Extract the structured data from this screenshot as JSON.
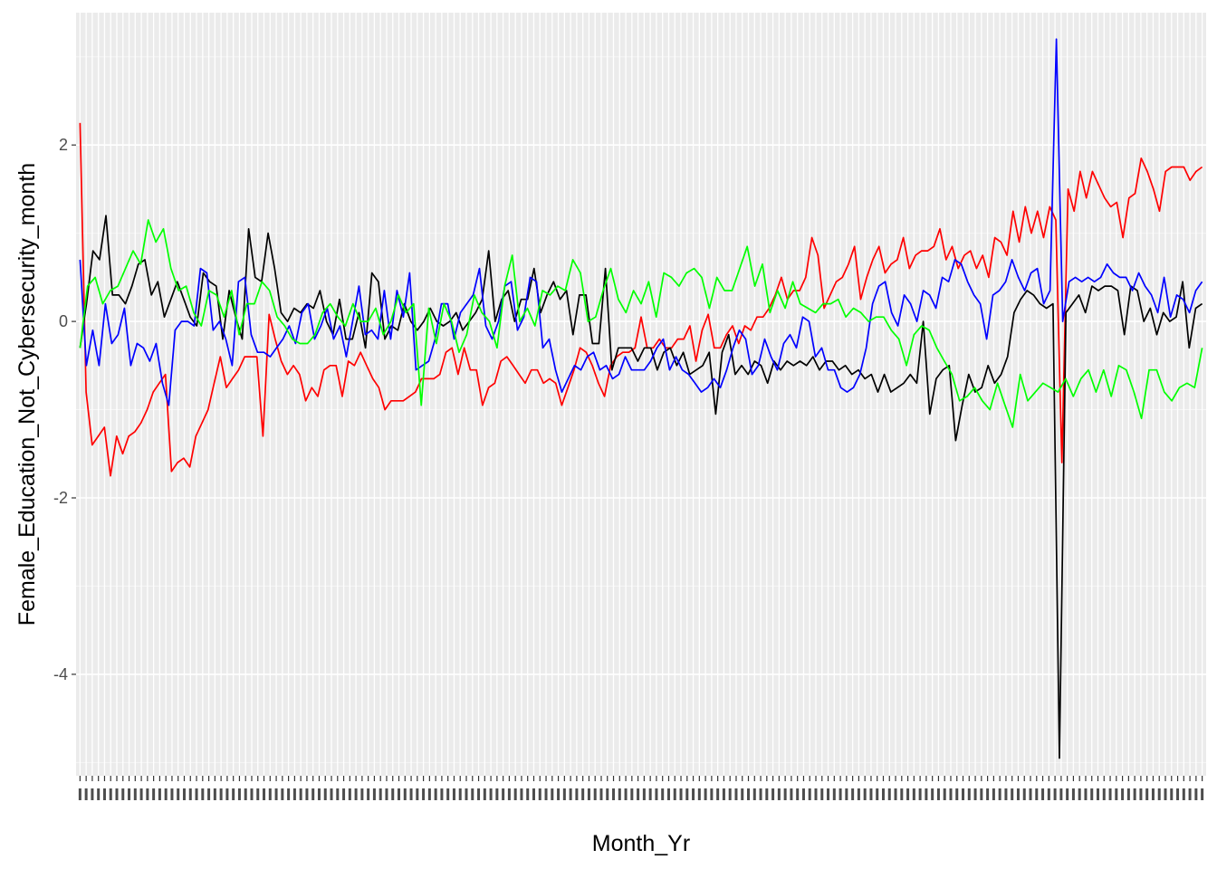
{
  "chart_data": {
    "type": "line",
    "title": "",
    "xlabel": "Month_Yr",
    "ylabel": "Female_Education_Not_Cybersecurity_month",
    "x": {
      "start": 0,
      "end": 183
    },
    "x_tick_count": 184,
    "x_tick_labels_note": "184 overlapping date tick labels, unreadable",
    "xlim": [
      0,
      183
    ],
    "ylim": [
      -5.15,
      3.5
    ],
    "y_ticks": [
      2,
      0,
      -2,
      -4
    ],
    "grid": true,
    "legend": "none",
    "panel_background": "#ebebeb",
    "series": [
      {
        "color": "#ff0000",
        "values": [
          2.25,
          -0.8,
          -1.4,
          -1.3,
          -1.2,
          -1.75,
          -1.3,
          -1.5,
          -1.3,
          -1.25,
          -1.15,
          -1.0,
          -0.8,
          -0.7,
          -0.6,
          -1.7,
          -1.6,
          -1.55,
          -1.65,
          -1.3,
          -1.15,
          -1.0,
          -0.7,
          -0.4,
          -0.75,
          -0.65,
          -0.55,
          -0.4,
          -0.4,
          -0.4,
          -1.3,
          0.08,
          -0.2,
          -0.45,
          -0.6,
          -0.5,
          -0.6,
          -0.9,
          -0.75,
          -0.85,
          -0.55,
          -0.5,
          -0.5,
          -0.85,
          -0.45,
          -0.5,
          -0.35,
          -0.5,
          -0.65,
          -0.75,
          -1.0,
          -0.9,
          -0.9,
          -0.9,
          -0.85,
          -0.8,
          -0.65,
          -0.65,
          -0.65,
          -0.6,
          -0.35,
          -0.3,
          -0.6,
          -0.3,
          -0.55,
          -0.55,
          -0.95,
          -0.75,
          -0.7,
          -0.45,
          -0.4,
          -0.5,
          -0.6,
          -0.7,
          -0.55,
          -0.55,
          -0.7,
          -0.65,
          -0.7,
          -0.95,
          -0.75,
          -0.55,
          -0.3,
          -0.35,
          -0.5,
          -0.7,
          -0.85,
          -0.5,
          -0.4,
          -0.35,
          -0.35,
          -0.3,
          0.05,
          -0.3,
          -0.3,
          -0.2,
          -0.3,
          -0.3,
          -0.2,
          -0.2,
          -0.05,
          -0.45,
          -0.1,
          0.08,
          -0.3,
          -0.3,
          -0.15,
          -0.05,
          -0.25,
          -0.05,
          -0.1,
          0.05,
          0.05,
          0.15,
          0.3,
          0.5,
          0.25,
          0.35,
          0.35,
          0.5,
          0.95,
          0.75,
          0.15,
          0.3,
          0.45,
          0.5,
          0.65,
          0.85,
          0.25,
          0.5,
          0.7,
          0.85,
          0.55,
          0.65,
          0.7,
          0.95,
          0.6,
          0.75,
          0.8,
          0.8,
          0.85,
          1.05,
          0.7,
          0.85,
          0.6,
          0.75,
          0.8,
          0.6,
          0.75,
          0.5,
          0.95,
          0.9,
          0.75,
          1.25,
          0.9,
          1.3,
          1.0,
          1.25,
          0.95,
          1.3,
          1.15,
          -1.6,
          1.5,
          1.25,
          1.7,
          1.4,
          1.7,
          1.55,
          1.4,
          1.3,
          1.35,
          0.95,
          1.4,
          1.45,
          1.85,
          1.7,
          1.5,
          1.25,
          1.7,
          1.75,
          1.75,
          1.75,
          1.6,
          1.7,
          1.75
        ]
      },
      {
        "color": "#000000",
        "values": [
          -0.3,
          0.2,
          0.8,
          0.7,
          1.2,
          0.3,
          0.3,
          0.2,
          0.4,
          0.65,
          0.7,
          0.3,
          0.45,
          0.05,
          0.25,
          0.45,
          0.25,
          0.05,
          -0.05,
          0.55,
          0.45,
          0.4,
          -0.2,
          0.35,
          0.05,
          -0.2,
          1.05,
          0.5,
          0.45,
          1.0,
          0.6,
          0.1,
          0.0,
          0.15,
          0.1,
          0.2,
          0.15,
          0.35,
          0.0,
          -0.15,
          0.25,
          -0.2,
          -0.2,
          0.1,
          -0.3,
          0.55,
          0.45,
          -0.2,
          -0.05,
          -0.1,
          0.2,
          0.0,
          -0.1,
          0.0,
          0.15,
          0.0,
          -0.05,
          0.0,
          0.1,
          -0.1,
          0.0,
          0.1,
          0.25,
          0.8,
          0.0,
          0.25,
          0.35,
          0.0,
          0.25,
          0.25,
          0.6,
          0.1,
          0.3,
          0.45,
          0.25,
          0.35,
          -0.15,
          0.3,
          0.3,
          -0.25,
          -0.25,
          0.6,
          -0.55,
          -0.3,
          -0.3,
          -0.3,
          -0.45,
          -0.3,
          -0.3,
          -0.55,
          -0.35,
          -0.3,
          -0.5,
          -0.35,
          -0.6,
          -0.55,
          -0.5,
          -0.35,
          -1.05,
          -0.35,
          -0.15,
          -0.6,
          -0.5,
          -0.6,
          -0.45,
          -0.5,
          -0.7,
          -0.45,
          -0.55,
          -0.45,
          -0.5,
          -0.45,
          -0.5,
          -0.4,
          -0.55,
          -0.45,
          -0.45,
          -0.55,
          -0.5,
          -0.6,
          -0.55,
          -0.65,
          -0.6,
          -0.8,
          -0.6,
          -0.8,
          -0.75,
          -0.7,
          -0.6,
          -0.7,
          0.0,
          -1.05,
          -0.65,
          -0.55,
          -0.5,
          -1.35,
          -0.95,
          -0.6,
          -0.8,
          -0.75,
          -0.5,
          -0.7,
          -0.6,
          -0.4,
          0.1,
          0.25,
          0.35,
          0.3,
          0.2,
          0.15,
          0.2,
          -4.95,
          0.1,
          0.2,
          0.3,
          0.1,
          0.4,
          0.35,
          0.4,
          0.4,
          0.35,
          -0.15,
          0.4,
          0.35,
          0.0,
          0.15,
          -0.15,
          0.1,
          0.0,
          0.05,
          0.45,
          -0.3,
          0.15,
          0.2
        ]
      },
      {
        "color": "#0000ff",
        "values": [
          0.7,
          -0.5,
          -0.1,
          -0.5,
          0.2,
          -0.25,
          -0.15,
          0.15,
          -0.5,
          -0.25,
          -0.3,
          -0.45,
          -0.25,
          -0.7,
          -0.95,
          -0.1,
          0.0,
          0.0,
          -0.05,
          0.6,
          0.55,
          -0.1,
          0.0,
          -0.2,
          -0.5,
          0.45,
          0.5,
          -0.15,
          -0.35,
          -0.35,
          -0.4,
          -0.3,
          -0.2,
          -0.05,
          -0.25,
          0.1,
          0.2,
          -0.2,
          -0.05,
          0.15,
          -0.2,
          -0.05,
          -0.4,
          0.0,
          0.4,
          -0.15,
          -0.1,
          -0.2,
          0.35,
          -0.2,
          0.35,
          0.05,
          0.55,
          -0.55,
          -0.5,
          -0.45,
          -0.2,
          0.2,
          0.2,
          -0.2,
          0.1,
          0.2,
          0.3,
          0.6,
          -0.05,
          -0.2,
          0.0,
          0.4,
          0.45,
          -0.1,
          0.05,
          0.5,
          0.45,
          -0.3,
          -0.2,
          -0.55,
          -0.8,
          -0.65,
          -0.5,
          -0.55,
          -0.4,
          -0.35,
          -0.55,
          -0.5,
          -0.65,
          -0.6,
          -0.4,
          -0.55,
          -0.55,
          -0.55,
          -0.45,
          -0.3,
          -0.2,
          -0.55,
          -0.4,
          -0.55,
          -0.6,
          -0.7,
          -0.8,
          -0.75,
          -0.65,
          -0.75,
          -0.55,
          -0.3,
          -0.1,
          -0.2,
          -0.6,
          -0.5,
          -0.2,
          -0.4,
          -0.55,
          -0.25,
          -0.15,
          -0.3,
          0.05,
          0.0,
          -0.4,
          -0.3,
          -0.55,
          -0.55,
          -0.75,
          -0.8,
          -0.75,
          -0.6,
          -0.3,
          0.2,
          0.4,
          0.45,
          0.1,
          -0.05,
          0.3,
          0.2,
          0.0,
          0.35,
          0.3,
          0.15,
          0.5,
          0.45,
          0.7,
          0.65,
          0.45,
          0.3,
          0.2,
          -0.2,
          0.3,
          0.35,
          0.45,
          0.7,
          0.5,
          0.35,
          0.55,
          0.6,
          0.2,
          0.35,
          3.2,
          0.0,
          0.45,
          0.5,
          0.45,
          0.5,
          0.45,
          0.5,
          0.65,
          0.55,
          0.5,
          0.5,
          0.35,
          0.55,
          0.4,
          0.3,
          0.1,
          0.5,
          0.05,
          0.3,
          0.25,
          0.1,
          0.35,
          0.45
        ]
      },
      {
        "color": "#00ff00",
        "values": [
          -0.3,
          0.4,
          0.5,
          0.2,
          0.35,
          0.4,
          0.6,
          0.8,
          0.65,
          1.15,
          0.9,
          1.05,
          0.6,
          0.35,
          0.4,
          0.1,
          -0.05,
          0.35,
          0.3,
          0.05,
          0.35,
          -0.15,
          0.2,
          0.2,
          0.45,
          0.35,
          0.05,
          -0.05,
          -0.2,
          -0.25,
          -0.25,
          -0.15,
          0.1,
          0.2,
          0.05,
          -0.05,
          0.2,
          0.0,
          0.0,
          0.15,
          -0.15,
          0.0,
          0.3,
          0.1,
          0.2,
          -0.95,
          0.15,
          -0.25,
          0.2,
          0.0,
          -0.35,
          -0.15,
          0.3,
          0.1,
          0.0,
          -0.3,
          0.4,
          0.75,
          0.0,
          0.15,
          -0.05,
          0.35,
          0.3,
          0.4,
          0.35,
          0.7,
          0.55,
          0.0,
          0.05,
          0.35,
          0.6,
          0.25,
          0.1,
          0.35,
          0.2,
          0.45,
          0.05,
          0.55,
          0.5,
          0.4,
          0.55,
          0.6,
          0.5,
          0.15,
          0.5,
          0.35,
          0.35,
          0.6,
          0.85,
          0.4,
          0.65,
          0.1,
          0.35,
          0.15,
          0.45,
          0.2,
          0.15,
          0.1,
          0.2,
          0.2,
          0.25,
          0.05,
          0.15,
          0.1,
          0.0,
          0.05,
          0.05,
          -0.1,
          -0.2,
          -0.5,
          -0.15,
          -0.05,
          -0.1,
          -0.3,
          -0.45,
          -0.6,
          -0.9,
          -0.85,
          -0.75,
          -0.9,
          -1.0,
          -0.7,
          -0.95,
          -1.2,
          -0.6,
          -0.9,
          -0.8,
          -0.7,
          -0.75,
          -0.8,
          -0.65,
          -0.85,
          -0.65,
          -0.55,
          -0.8,
          -0.55,
          -0.85,
          -0.5,
          -0.55,
          -0.8,
          -1.1,
          -0.55,
          -0.55,
          -0.8,
          -0.9,
          -0.75,
          -0.7,
          -0.75,
          -0.3
        ]
      }
    ]
  }
}
